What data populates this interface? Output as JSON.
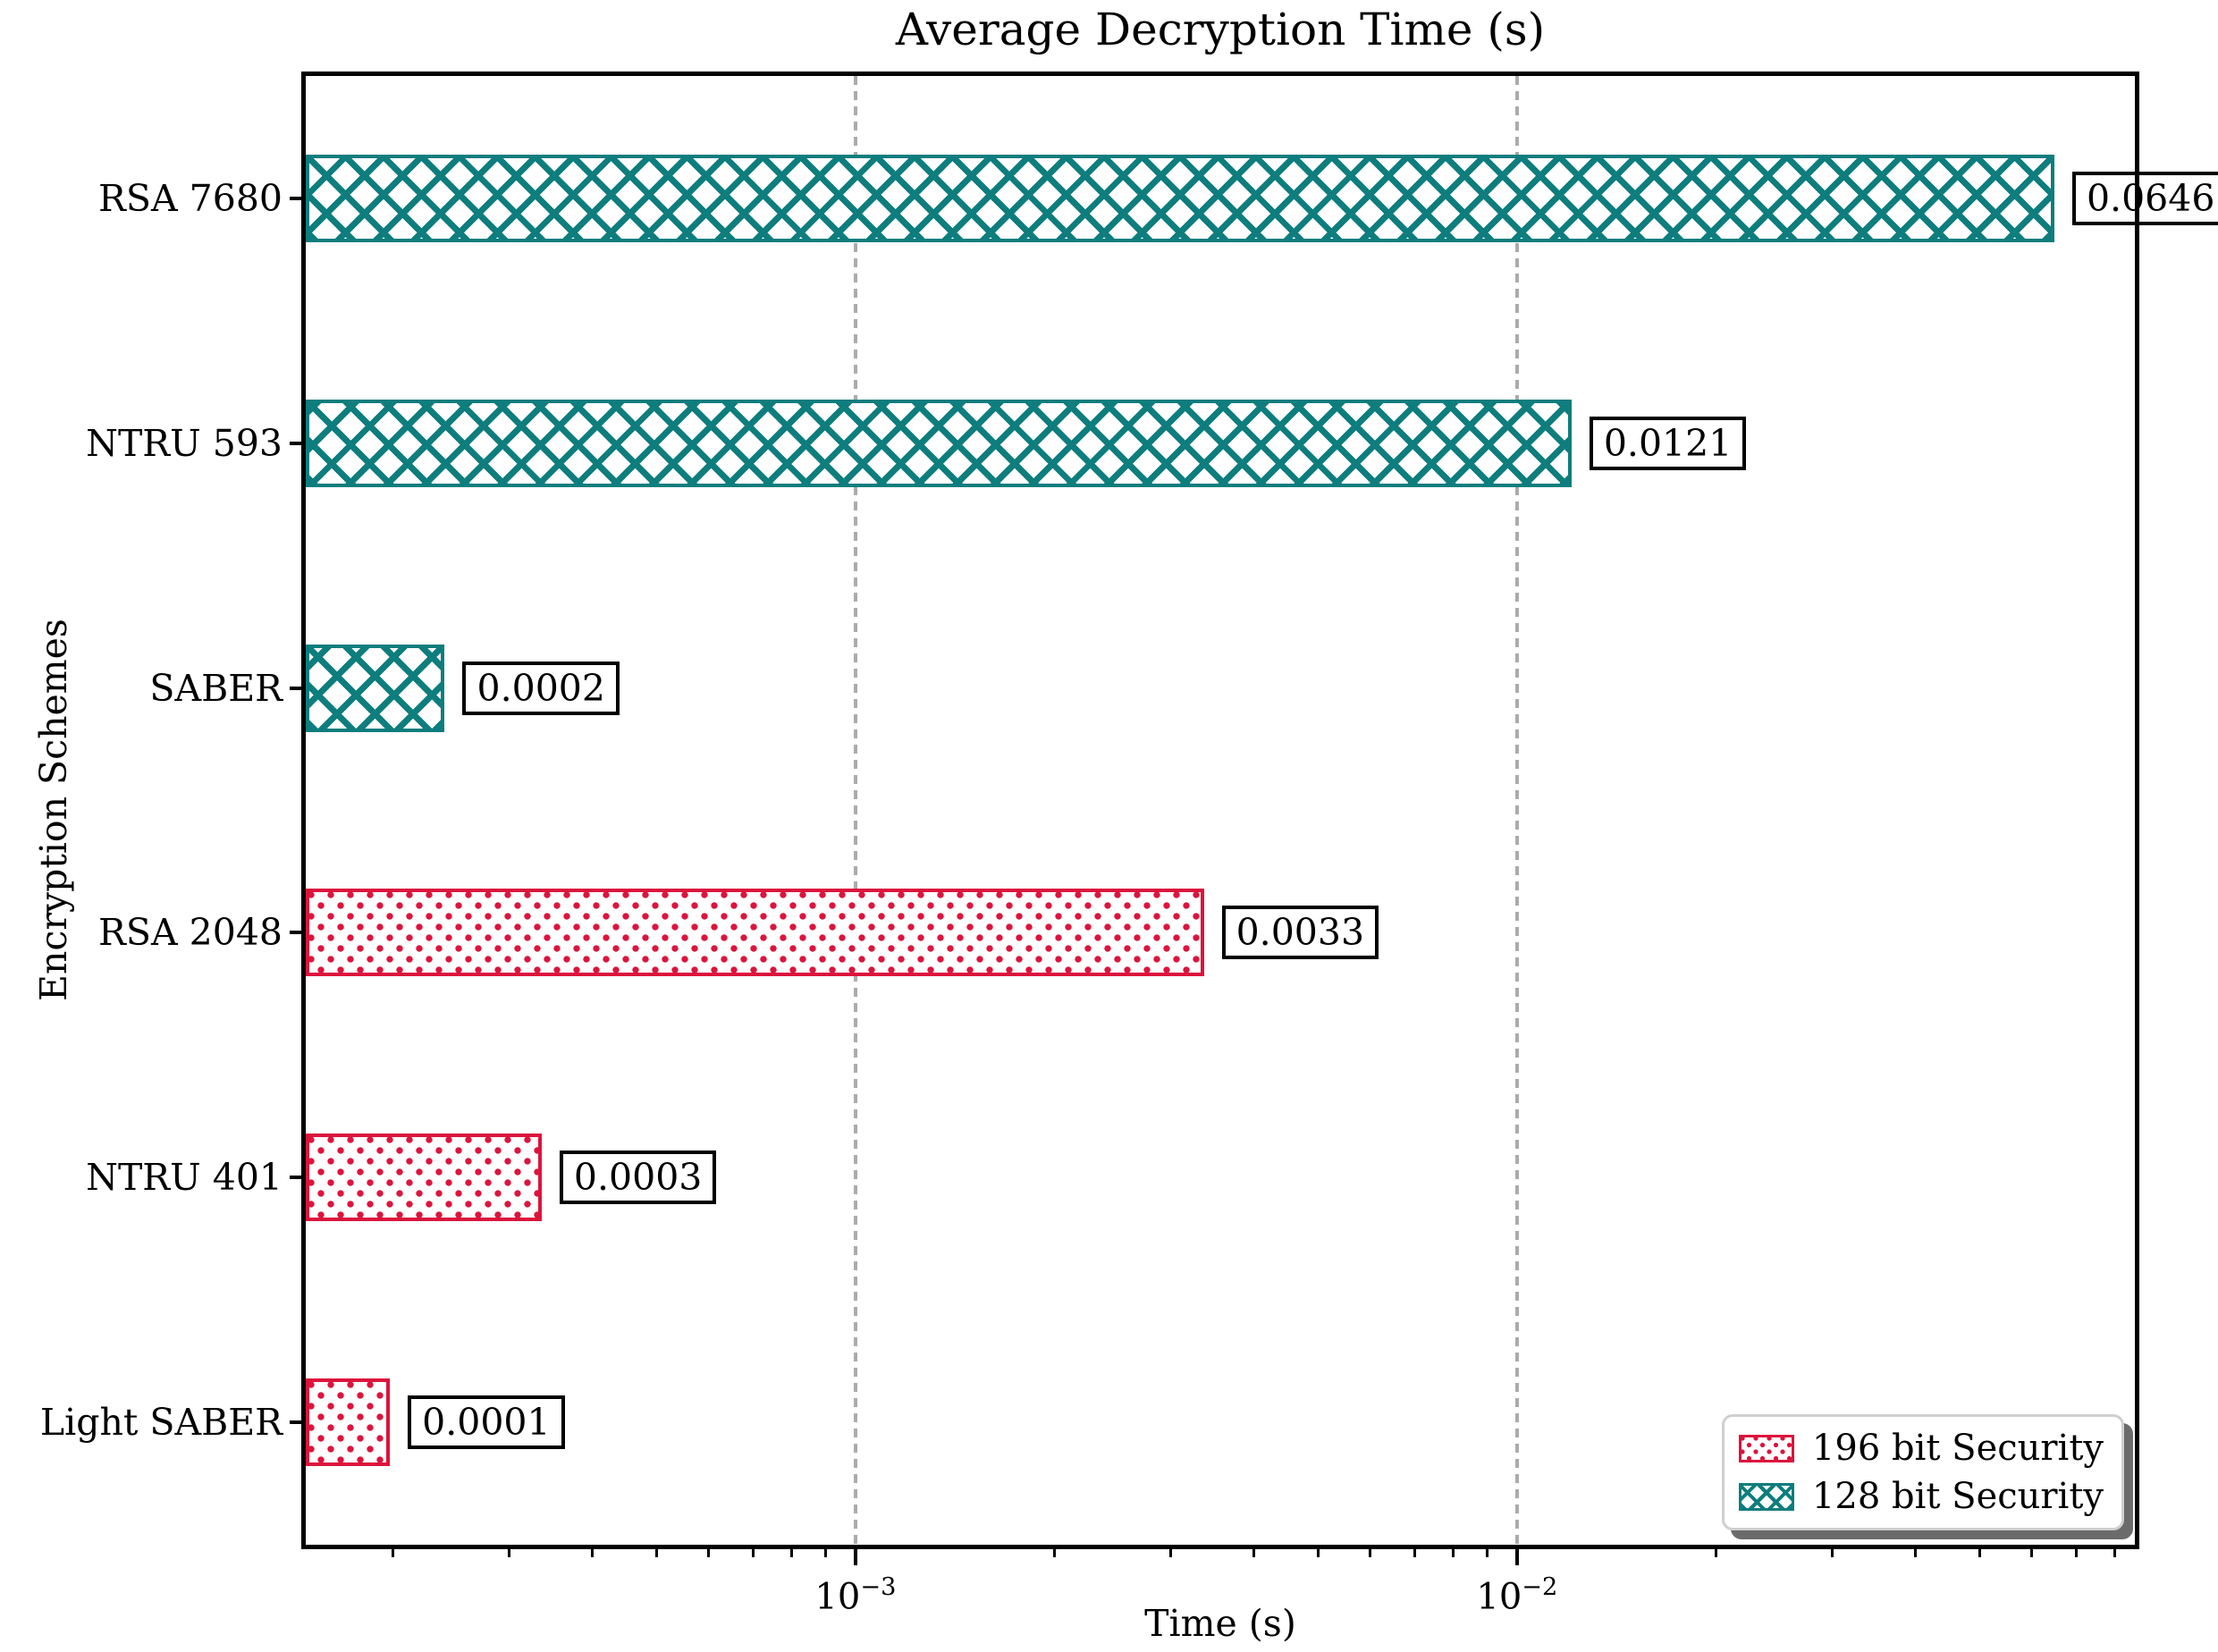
{
  "chart_data": {
    "type": "bar",
    "orientation": "horizontal",
    "title": "Average Decryption Time (s)",
    "xlabel": "Time (s)",
    "ylabel": "Encryption Schemes",
    "x_scale": "log",
    "x_axis": {
      "log_min": -3.831,
      "log_max": -1.066,
      "major_ticks": [
        {
          "log": -3,
          "base": "10",
          "exp": "−3"
        },
        {
          "log": -2,
          "base": "10",
          "exp": "−2"
        }
      ]
    },
    "grid": "vertical dashed at major x ticks",
    "categories": [
      "RSA 7680",
      "NTRU 593",
      "SABER",
      "RSA 2048",
      "NTRU 401",
      "Light SABER"
    ],
    "values": [
      0.0646,
      0.0121,
      0.0002,
      0.0033,
      0.0003,
      0.0001
    ],
    "value_labels": [
      "0.0646",
      "0.0121",
      "0.0002",
      "0.0033",
      "0.0003",
      "0.0001"
    ],
    "bar_series": [
      "128 bit Security",
      "128 bit Security",
      "128 bit Security",
      "196 bit Security",
      "196 bit Security",
      "196 bit Security"
    ],
    "bar_end_frac": [
      0.956,
      0.692,
      0.076,
      0.491,
      0.129,
      0.046
    ],
    "legend": {
      "position": "lower right",
      "items": [
        {
          "label": "196 bit Security",
          "color": "#DC143C",
          "hatch": "dots"
        },
        {
          "label": "128 bit Security",
          "color": "#0E7D7D",
          "hatch": "cross"
        }
      ]
    },
    "colors": {
      "teal": "#0E7D7D",
      "crimson": "#DC143C",
      "grid": "#ABABAB"
    }
  }
}
